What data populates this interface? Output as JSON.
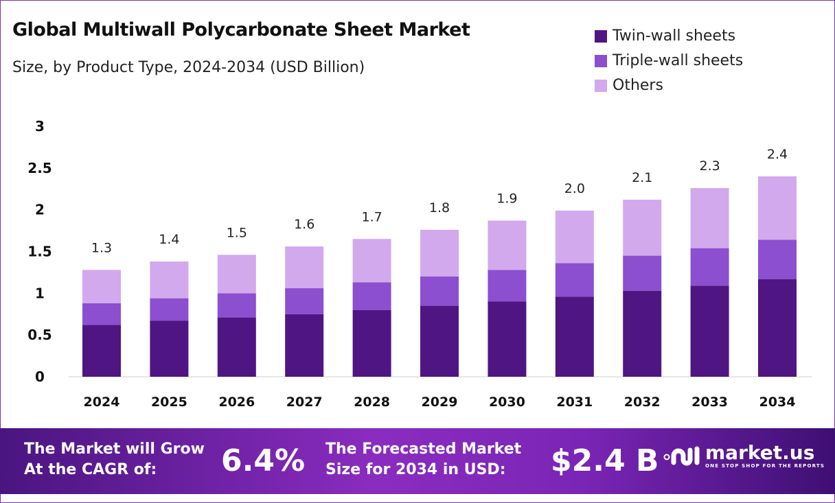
{
  "title": "Global Multiwall Polycarbonate Sheet Market",
  "subtitle": "Size, by Product Type, 2024-2034 (USD Billion)",
  "colors": {
    "twin": "#4f1582",
    "triple": "#8b4fcf",
    "others": "#d2a9ec"
  },
  "chart_data": {
    "type": "bar",
    "stacked": true,
    "categories": [
      "2024",
      "2025",
      "2026",
      "2027",
      "2028",
      "2029",
      "2030",
      "2031",
      "2032",
      "2033",
      "2034"
    ],
    "series": [
      {
        "name": "Twin-wall sheets",
        "values": [
          0.62,
          0.67,
          0.71,
          0.75,
          0.8,
          0.85,
          0.9,
          0.96,
          1.03,
          1.09,
          1.17
        ]
      },
      {
        "name": "Triple-wall sheets",
        "values": [
          0.26,
          0.27,
          0.29,
          0.31,
          0.33,
          0.35,
          0.38,
          0.4,
          0.42,
          0.45,
          0.47
        ]
      },
      {
        "name": "Others",
        "values": [
          0.4,
          0.44,
          0.46,
          0.5,
          0.52,
          0.56,
          0.59,
          0.63,
          0.67,
          0.72,
          0.76
        ]
      }
    ],
    "totals": [
      "1.3",
      "1.4",
      "1.5",
      "1.6",
      "1.7",
      "1.8",
      "1.9",
      "2.0",
      "2.1",
      "2.3",
      "2.4"
    ],
    "yticks": [
      "0",
      "0.5",
      "1",
      "1.5",
      "2",
      "2.5",
      "3"
    ],
    "ylim": [
      0,
      3
    ],
    "grid": false,
    "legend": "top-right"
  },
  "footer": {
    "cagr_label_1": "The Market will Grow",
    "cagr_label_2": "At the CAGR of:",
    "cagr_value": "6.4%",
    "forecast_label_1": "The Forecasted Market",
    "forecast_label_2": "Size for 2034 in USD:",
    "forecast_value": "$2.4 B",
    "brand": "market.us",
    "tagline": "ONE STOP SHOP FOR THE REPORTS"
  }
}
